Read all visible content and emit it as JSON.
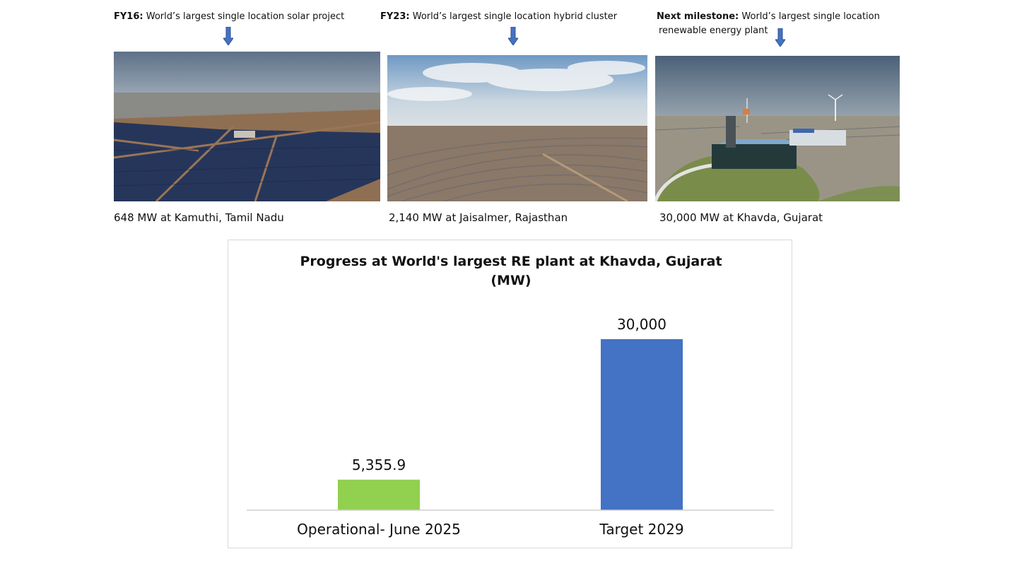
{
  "milestones": [
    {
      "label": "FY16:",
      "text": "World’s largest single location solar project",
      "place": "648 MW at Kamuthi, Tamil Nadu",
      "image": "solar-farm-photo"
    },
    {
      "label": "FY23:",
      "text": "World’s largest single location hybrid cluster",
      "place": "2,140 MW at Jaisalmer, Rajasthan",
      "image": "hybrid-cluster-photo"
    },
    {
      "label": "Next milestone:",
      "text_line1": "World’s largest single location",
      "text_line2": "renewable energy plant",
      "place": "30,000 MW at Khavda, Gujarat",
      "image": "renewable-plant-photo"
    }
  ],
  "arrow_icon": "down-arrow-icon",
  "chart_data": {
    "type": "bar",
    "title": "Progress at World's largest RE plant at Khavda, Gujarat (MW)",
    "title_lines": [
      "Progress at World's largest RE plant at Khavda, Gujarat",
      "(MW)"
    ],
    "categories": [
      "Operational- June 2025",
      "Target 2029"
    ],
    "values": [
      5355.9,
      30000
    ],
    "data_labels": [
      "5,355.9",
      "30,000"
    ],
    "colors": [
      "#92D050",
      "#4472C4"
    ],
    "ylim": [
      0,
      30000
    ],
    "grid": false,
    "legend": "none"
  }
}
